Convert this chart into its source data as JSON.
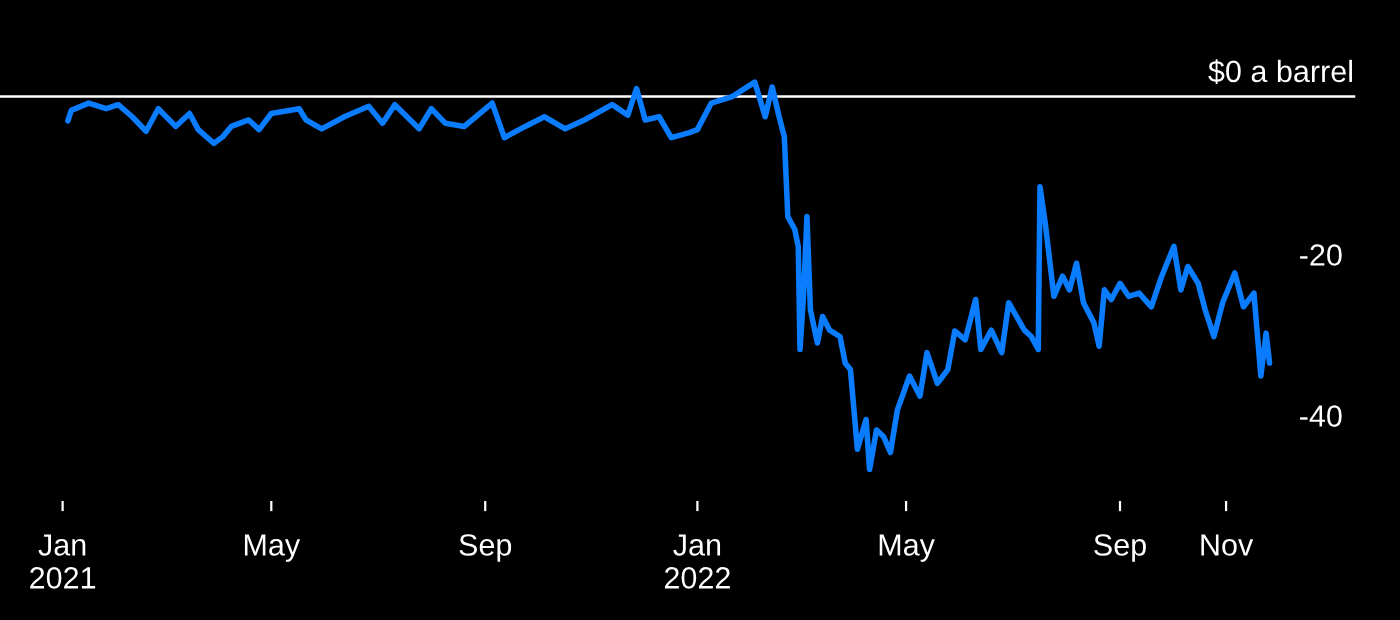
{
  "chart_data": {
    "type": "line",
    "x": [
      "2021-01-04",
      "2021-01-06",
      "2021-01-16",
      "2021-01-26",
      "2021-02-02",
      "2021-02-10",
      "2021-02-18",
      "2021-02-25",
      "2021-03-07",
      "2021-03-15",
      "2021-03-20",
      "2021-03-29",
      "2021-04-03",
      "2021-04-08",
      "2021-04-18",
      "2021-04-24",
      "2021-05-01",
      "2021-05-17",
      "2021-05-21",
      "2021-05-30",
      "2021-06-12",
      "2021-06-26",
      "2021-07-04",
      "2021-07-11",
      "2021-07-25",
      "2021-08-01",
      "2021-08-09",
      "2021-08-20",
      "2021-09-05",
      "2021-09-12",
      "2021-09-24",
      "2021-10-05",
      "2021-10-17",
      "2021-10-28",
      "2021-11-13",
      "2021-11-22",
      "2021-11-27",
      "2021-12-02",
      "2021-12-10",
      "2021-12-17",
      "2021-12-27",
      "2022-01-01",
      "2022-01-09",
      "2022-01-21",
      "2022-02-03",
      "2022-02-09",
      "2022-02-13",
      "2022-02-17",
      "2022-02-20",
      "2022-02-22",
      "2022-02-26",
      "2022-02-28",
      "2022-03-01",
      "2022-03-03",
      "2022-03-05",
      "2022-03-07",
      "2022-03-11",
      "2022-03-14",
      "2022-03-18",
      "2022-03-24",
      "2022-03-27",
      "2022-03-30",
      "2022-04-03",
      "2022-04-08",
      "2022-04-10",
      "2022-04-14",
      "2022-04-18",
      "2022-04-22",
      "2022-04-26",
      "2022-05-03",
      "2022-05-09",
      "2022-05-13",
      "2022-05-19",
      "2022-05-25",
      "2022-05-29",
      "2022-06-04",
      "2022-06-10",
      "2022-06-13",
      "2022-06-19",
      "2022-06-25",
      "2022-06-29",
      "2022-07-08",
      "2022-07-12",
      "2022-07-16",
      "2022-07-17",
      "2022-07-20",
      "2022-07-25",
      "2022-07-30",
      "2022-08-03",
      "2022-08-07",
      "2022-08-11",
      "2022-08-17",
      "2022-08-20",
      "2022-08-23",
      "2022-08-27",
      "2022-09-01",
      "2022-09-06",
      "2022-09-12",
      "2022-09-19",
      "2022-09-25",
      "2022-10-02",
      "2022-10-06",
      "2022-10-10",
      "2022-10-16",
      "2022-10-20",
      "2022-10-25",
      "2022-10-30",
      "2022-11-06",
      "2022-11-11",
      "2022-11-17",
      "2022-11-21",
      "2022-11-24",
      "2022-11-26"
    ],
    "series": [
      {
        "color": "#0a7cff",
        "values": [
          -3.0,
          -1.7,
          -0.8,
          -1.5,
          -1.0,
          -2.5,
          -4.3,
          -1.5,
          -3.7,
          -2.1,
          -4.1,
          -5.8,
          -5.0,
          -3.7,
          -2.9,
          -4.1,
          -2.1,
          -1.5,
          -2.9,
          -4.0,
          -2.5,
          -1.2,
          -3.3,
          -1.0,
          -4.0,
          -1.5,
          -3.3,
          -3.7,
          -0.8,
          -5.1,
          -3.7,
          -2.5,
          -4.0,
          -2.9,
          -1.0,
          -2.3,
          1.0,
          -2.9,
          -2.5,
          -5.1,
          -4.5,
          -4.1,
          -0.8,
          0.0,
          1.8,
          -2.5,
          1.2,
          -2.5,
          -5.0,
          -14.9,
          -16.5,
          -18.6,
          -31.4,
          -24.8,
          -14.9,
          -26.5,
          -30.6,
          -27.3,
          -29.0,
          -29.8,
          -33.1,
          -33.9,
          -43.8,
          -40.1,
          -46.3,
          -41.4,
          -42.2,
          -44.2,
          -38.9,
          -34.7,
          -37.2,
          -31.8,
          -35.6,
          -33.9,
          -29.1,
          -30.2,
          -25.2,
          -31.4,
          -29.0,
          -31.8,
          -25.6,
          -29.0,
          -29.8,
          -31.4,
          -11.2,
          -15.7,
          -24.8,
          -22.3,
          -24.0,
          -20.7,
          -25.6,
          -28.1,
          -31.0,
          -24.0,
          -25.2,
          -23.2,
          -24.8,
          -24.4,
          -26.1,
          -22.3,
          -18.6,
          -24.0,
          -21.1,
          -23.2,
          -26.5,
          -29.8,
          -25.6,
          -21.9,
          -26.1,
          -24.4,
          -34.7,
          -29.4,
          -33.1
        ]
      }
    ],
    "xlim": [
      "2020-11-26",
      "2023-02-09"
    ],
    "xticks": [
      {
        "value": "2021-01-01",
        "label": "Jan\n2021"
      },
      {
        "value": "2021-05-01",
        "label": "May"
      },
      {
        "value": "2021-09-01",
        "label": "Sep"
      },
      {
        "value": "2022-01-01",
        "label": "Jan\n2022"
      },
      {
        "value": "2022-05-01",
        "label": "May"
      },
      {
        "value": "2022-09-01",
        "label": "Sep"
      },
      {
        "value": "2022-11-01",
        "label": "Nov"
      }
    ],
    "ylim": [
      -65,
      12
    ],
    "yticks": [
      -20,
      -40
    ],
    "ref_lines": [
      {
        "axis": "y",
        "value": 0,
        "color": "#ffffff",
        "label": "$0 a barrel"
      }
    ],
    "grid": false,
    "legend": false,
    "marker": "none",
    "line_style": "solid"
  }
}
